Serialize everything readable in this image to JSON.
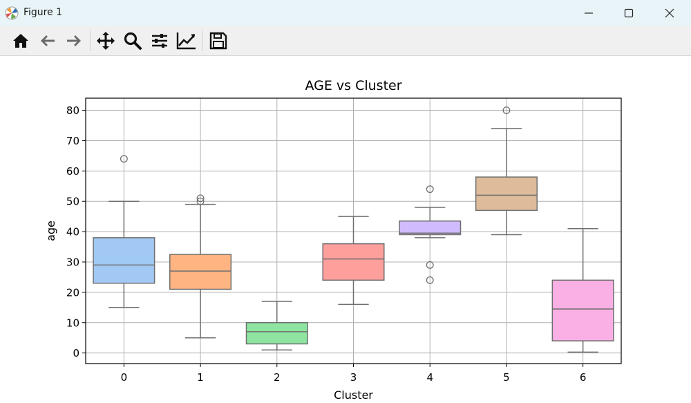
{
  "window": {
    "title": "Figure 1",
    "minimize_icon": "minimize-icon",
    "maximize_icon": "maximize-icon",
    "close_icon": "close-icon"
  },
  "toolbar": {
    "buttons": [
      {
        "name": "home-icon"
      },
      {
        "name": "back-arrow-icon"
      },
      {
        "name": "forward-arrow-icon"
      },
      {
        "name": "pan-move-icon"
      },
      {
        "name": "zoom-magnifier-icon"
      },
      {
        "name": "configure-subplots-icon"
      },
      {
        "name": "edit-axis-icon"
      },
      {
        "name": "save-floppy-icon"
      }
    ]
  },
  "colors": {
    "titlebar_bg": "#e9f4f8",
    "toolbar_bg": "#f0f0f0",
    "grid": "#b0b0b0",
    "box_edge": "#6f6f6f",
    "boxes": [
      "#a1c9f4",
      "#ffb482",
      "#8de5a1",
      "#ff9f9b",
      "#d0bbff",
      "#debb9b",
      "#fab0e4"
    ]
  },
  "chart_data": {
    "type": "box",
    "title": "AGE vs Cluster",
    "xlabel": "Cluster",
    "ylabel": "age",
    "categories": [
      "0",
      "1",
      "2",
      "3",
      "4",
      "5",
      "6"
    ],
    "yticks": [
      0,
      10,
      20,
      30,
      40,
      50,
      60,
      70,
      80
    ],
    "ylim": [
      -3.5,
      84
    ],
    "grid": true,
    "boxes": [
      {
        "category": "0",
        "whisker_low": 15,
        "q1": 23,
        "median": 29,
        "q3": 38,
        "whisker_high": 50,
        "outliers": [
          64
        ]
      },
      {
        "category": "1",
        "whisker_low": 5,
        "q1": 21,
        "median": 27,
        "q3": 32.5,
        "whisker_high": 49,
        "outliers": [
          50,
          51
        ]
      },
      {
        "category": "2",
        "whisker_low": 1,
        "q1": 3,
        "median": 7,
        "q3": 10,
        "whisker_high": 17,
        "outliers": []
      },
      {
        "category": "3",
        "whisker_low": 16,
        "q1": 24,
        "median": 31,
        "q3": 36,
        "whisker_high": 45,
        "outliers": []
      },
      {
        "category": "4",
        "whisker_low": 38,
        "q1": 39,
        "median": 39.5,
        "q3": 43.5,
        "whisker_high": 48,
        "outliers": [
          54,
          29,
          24
        ]
      },
      {
        "category": "5",
        "whisker_low": 39,
        "q1": 47,
        "median": 52,
        "q3": 58,
        "whisker_high": 74,
        "outliers": [
          80
        ]
      },
      {
        "category": "6",
        "whisker_low": 0.3,
        "q1": 4,
        "median": 14.5,
        "q3": 24,
        "whisker_high": 41,
        "outliers": []
      }
    ]
  }
}
